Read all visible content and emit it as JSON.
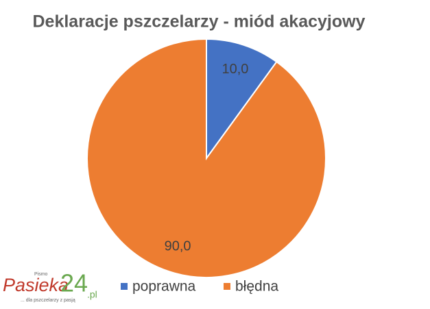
{
  "chart_data": {
    "type": "pie",
    "title": "Deklaracje pszczelarzy - miód akacyjowy",
    "categories": [
      "poprawna",
      "błędna"
    ],
    "values": [
      10,
      90
    ],
    "value_labels": [
      "10,0",
      "90,0"
    ],
    "colors": [
      "#4472c4",
      "#ed7d31"
    ],
    "legend": "bottom"
  },
  "watermark": {
    "small": "Pismo",
    "name": "Pasieka",
    "number": "24",
    "domain": ".pl",
    "tagline": "... dla pszczelarzy z pasją"
  }
}
